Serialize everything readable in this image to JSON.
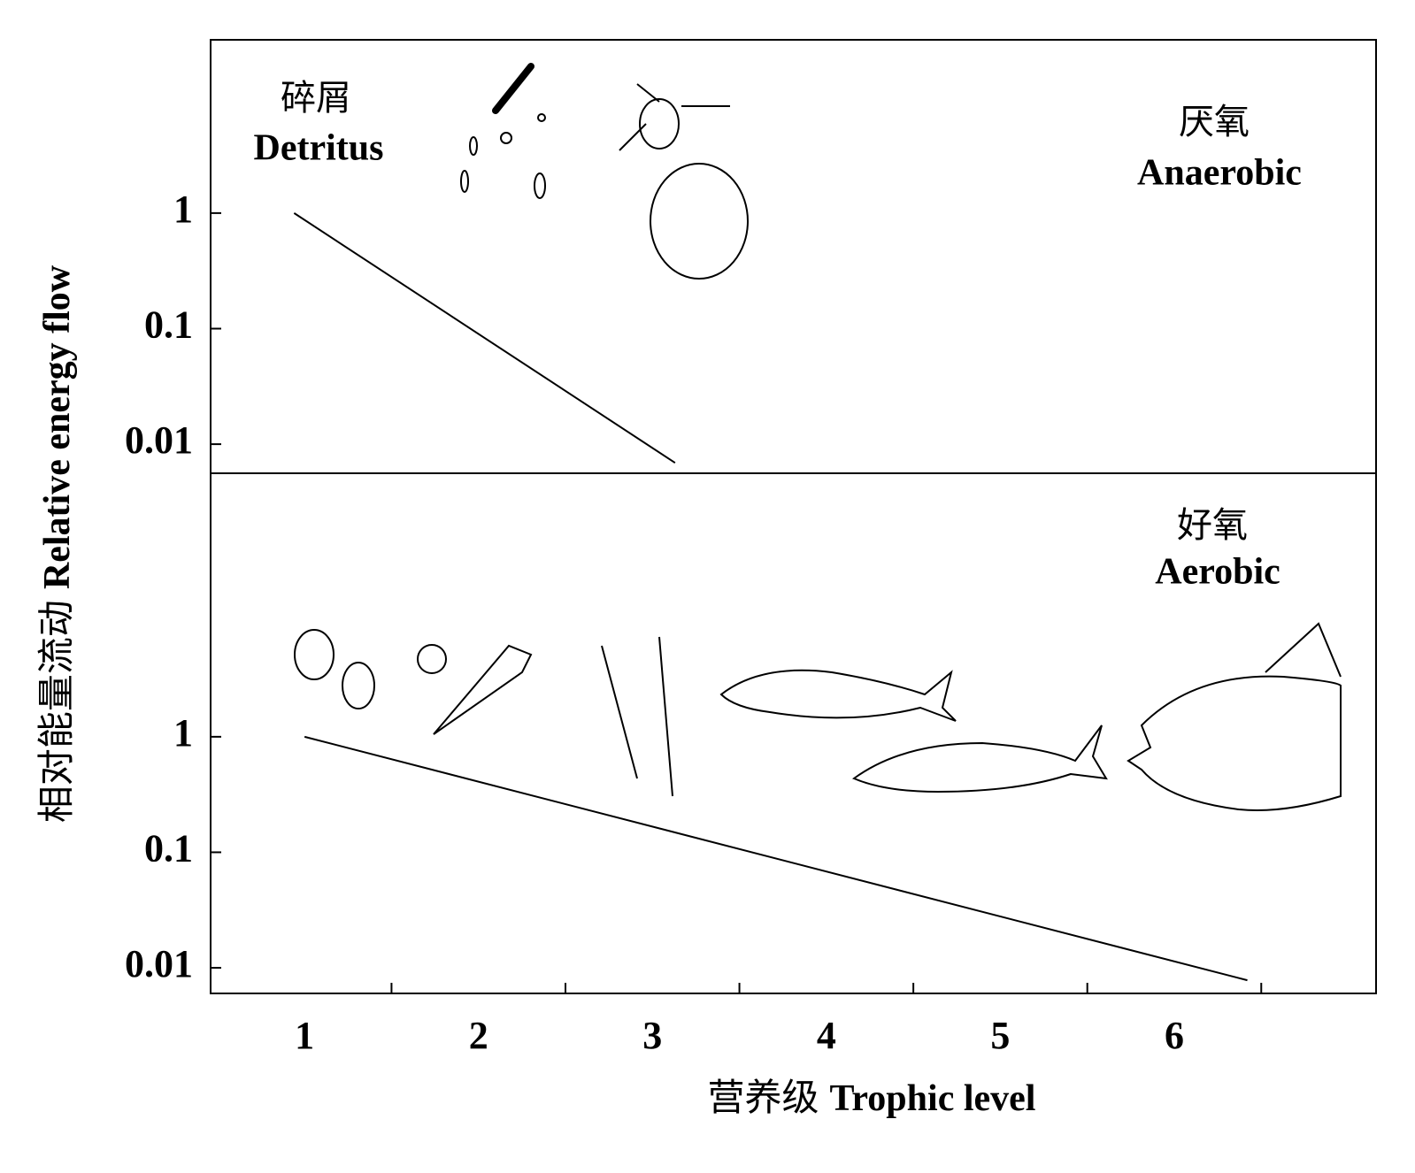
{
  "chart_data": [
    {
      "type": "line",
      "scale": "log",
      "ylabel": [
        "相对能量流动",
        "Relative energy flow"
      ],
      "annotations": [
        "碎屑",
        "Detritus",
        "厌氧",
        "Anaerobic"
      ],
      "x": [
        0.94,
        3.13
      ],
      "series": [
        {
          "color": "#000000",
          "values": [
            1,
            0.0069
          ]
        }
      ],
      "xlim": [
        0.46,
        7.16
      ],
      "ylim": [
        0.0056,
        31.6
      ],
      "yticks": [
        1,
        0.1,
        0.01
      ]
    },
    {
      "type": "line",
      "scale": "log",
      "xlabel": [
        "营养级",
        "Trophic level"
      ],
      "annotations": [
        "好氧",
        "Aerobic"
      ],
      "x": [
        1,
        6.42
      ],
      "series": [
        {
          "color": "#000000",
          "values": [
            1,
            0.0078
          ]
        }
      ],
      "xlim": [
        0.46,
        7.16
      ],
      "ylim": [
        0.006,
        191
      ],
      "yticks": [
        1,
        0.1,
        0.01
      ],
      "xticks": [
        1,
        2,
        3,
        4,
        5,
        6
      ],
      "xtick_marks": [
        1.5,
        2.5,
        3.5,
        4.5,
        5.5,
        6.5
      ]
    }
  ]
}
